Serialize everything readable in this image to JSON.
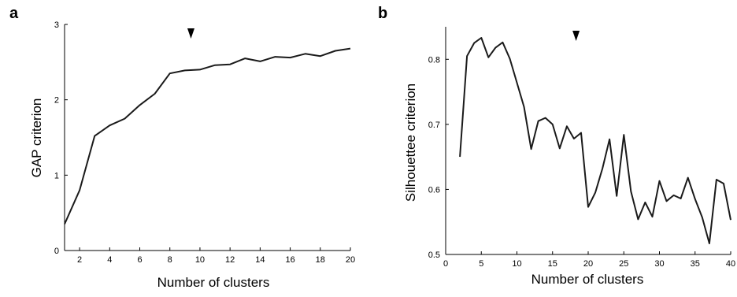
{
  "chart_data": [
    {
      "panel": "a",
      "type": "line",
      "xlabel": "Number of clusters",
      "ylabel": "GAP criterion",
      "xlim": [
        1,
        20
      ],
      "ylim": [
        0,
        3
      ],
      "xticks": [
        2,
        4,
        6,
        8,
        10,
        12,
        14,
        16,
        18,
        20
      ],
      "yticks": [
        0,
        1,
        2,
        3
      ],
      "grid": false,
      "marker_x": 9.4,
      "series": [
        {
          "x": [
            1,
            2,
            3,
            4,
            5,
            6,
            7,
            8,
            9,
            10,
            11,
            12,
            13,
            14,
            15,
            16,
            17,
            18,
            19,
            20
          ],
          "y": [
            0.35,
            0.8,
            1.52,
            1.66,
            1.75,
            1.93,
            2.08,
            2.35,
            2.39,
            2.4,
            2.46,
            2.47,
            2.55,
            2.51,
            2.57,
            2.56,
            2.61,
            2.58,
            2.65,
            2.68
          ]
        }
      ]
    },
    {
      "panel": "b",
      "type": "line",
      "xlabel": "Number of clusters",
      "ylabel": "Silhouettee criterion",
      "xlim": [
        0,
        40
      ],
      "ylim": [
        0.5,
        0.85
      ],
      "xticks": [
        0,
        5,
        10,
        15,
        20,
        25,
        30,
        35,
        40
      ],
      "yticks": [
        0.5,
        0.6,
        0.7,
        0.8
      ],
      "grid": false,
      "marker_x": 18.3,
      "series": [
        {
          "x": [
            2,
            3,
            4,
            5,
            6,
            7,
            8,
            9,
            10,
            11,
            12,
            13,
            14,
            15,
            16,
            17,
            18,
            19,
            20,
            21,
            22,
            23,
            24,
            25,
            26,
            27,
            28,
            29,
            30,
            31,
            32,
            33,
            34,
            35,
            36,
            37,
            38,
            39,
            40
          ],
          "y": [
            0.65,
            0.805,
            0.825,
            0.833,
            0.803,
            0.818,
            0.826,
            0.801,
            0.764,
            0.727,
            0.662,
            0.705,
            0.71,
            0.7,
            0.663,
            0.697,
            0.678,
            0.687,
            0.573,
            0.595,
            0.632,
            0.677,
            0.59,
            0.684,
            0.597,
            0.554,
            0.58,
            0.558,
            0.613,
            0.582,
            0.591,
            0.586,
            0.618,
            0.585,
            0.557,
            0.517,
            0.615,
            0.609,
            0.553
          ]
        }
      ]
    }
  ]
}
